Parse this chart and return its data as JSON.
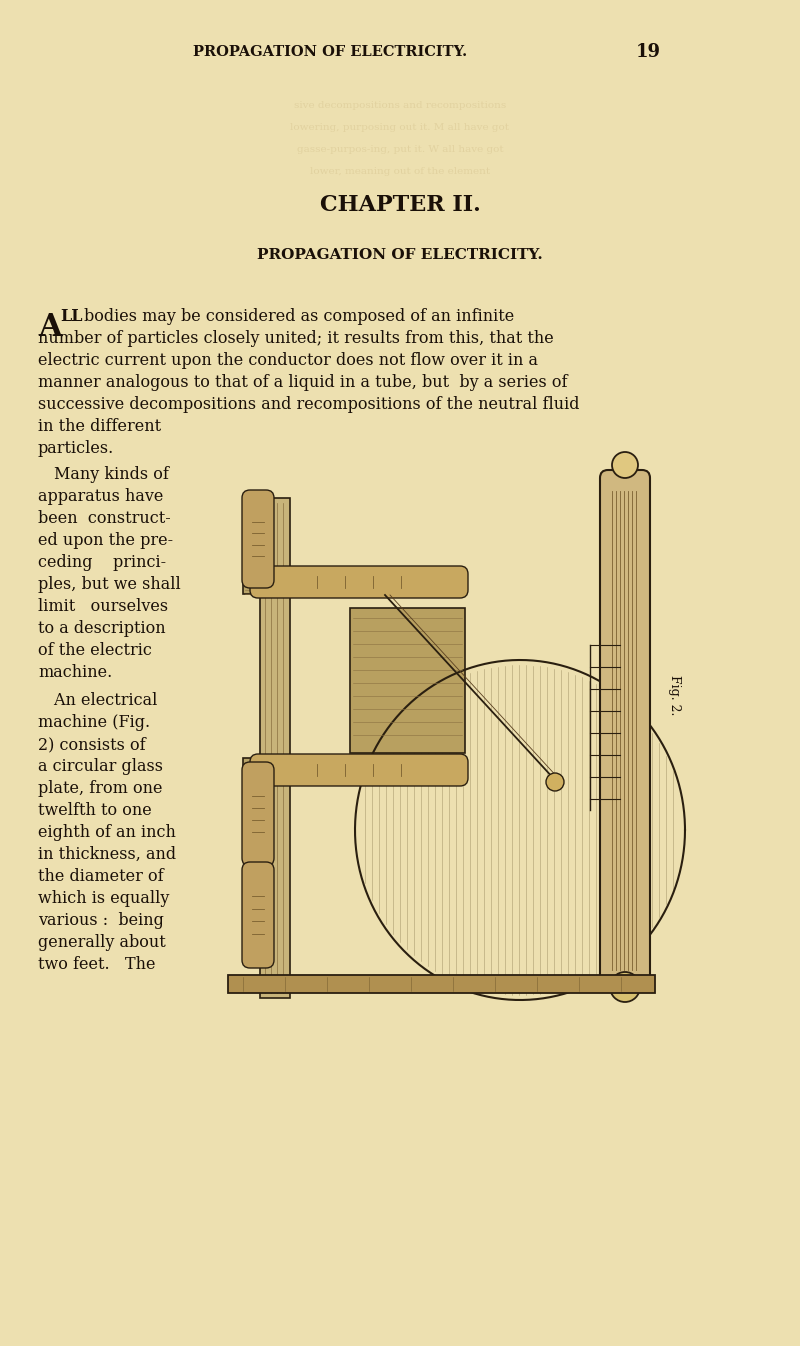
{
  "bg_color": "#f0e8c8",
  "page_color": "#ede0b0",
  "text_color": "#1a1008",
  "header_text": "PROPAGATION OF ELECTRICITY.",
  "page_number": "19",
  "chapter_title": "CHAPTER II.",
  "chapter_subtitle": "PROPAGATION OF ELECTRICITY.",
  "fig_label": "Fig. 2.",
  "figsize": [
    8.0,
    13.46
  ],
  "dpi": 100
}
